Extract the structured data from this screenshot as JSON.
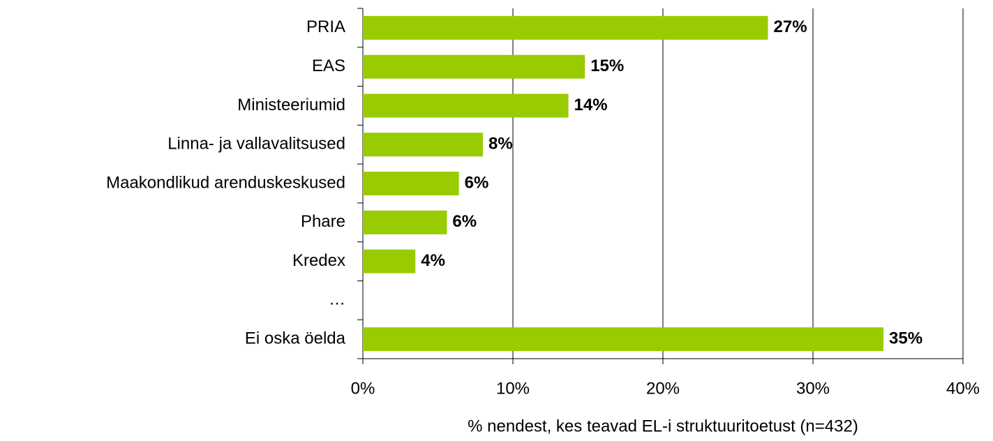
{
  "chart_data": {
    "type": "bar",
    "orientation": "horizontal",
    "categories": [
      "PRIA",
      "EAS",
      "Ministeeriumid",
      "Linna- ja vallavalitsused",
      "Maakondlikud arenduskeskused",
      "Phare",
      "Kredex",
      "…",
      "Ei oska öelda"
    ],
    "values": [
      27,
      14.8,
      13.7,
      8,
      6.4,
      5.6,
      3.5,
      null,
      34.7
    ],
    "value_labels": [
      "27%",
      "15%",
      "14%",
      "8%",
      "6%",
      "6%",
      "4%",
      null,
      "35%"
    ],
    "color": "#99cc00",
    "xlim": [
      0,
      40
    ],
    "xticks": [
      {
        "value": 0,
        "label": "0%"
      },
      {
        "value": 10,
        "label": "10%"
      },
      {
        "value": 20,
        "label": "20%"
      },
      {
        "value": 30,
        "label": "30%"
      },
      {
        "value": 40,
        "label": "40%"
      }
    ],
    "x_label": "% nendest, kes teavad EL-i struktuuritoetust (n=432)",
    "grid": true
  }
}
